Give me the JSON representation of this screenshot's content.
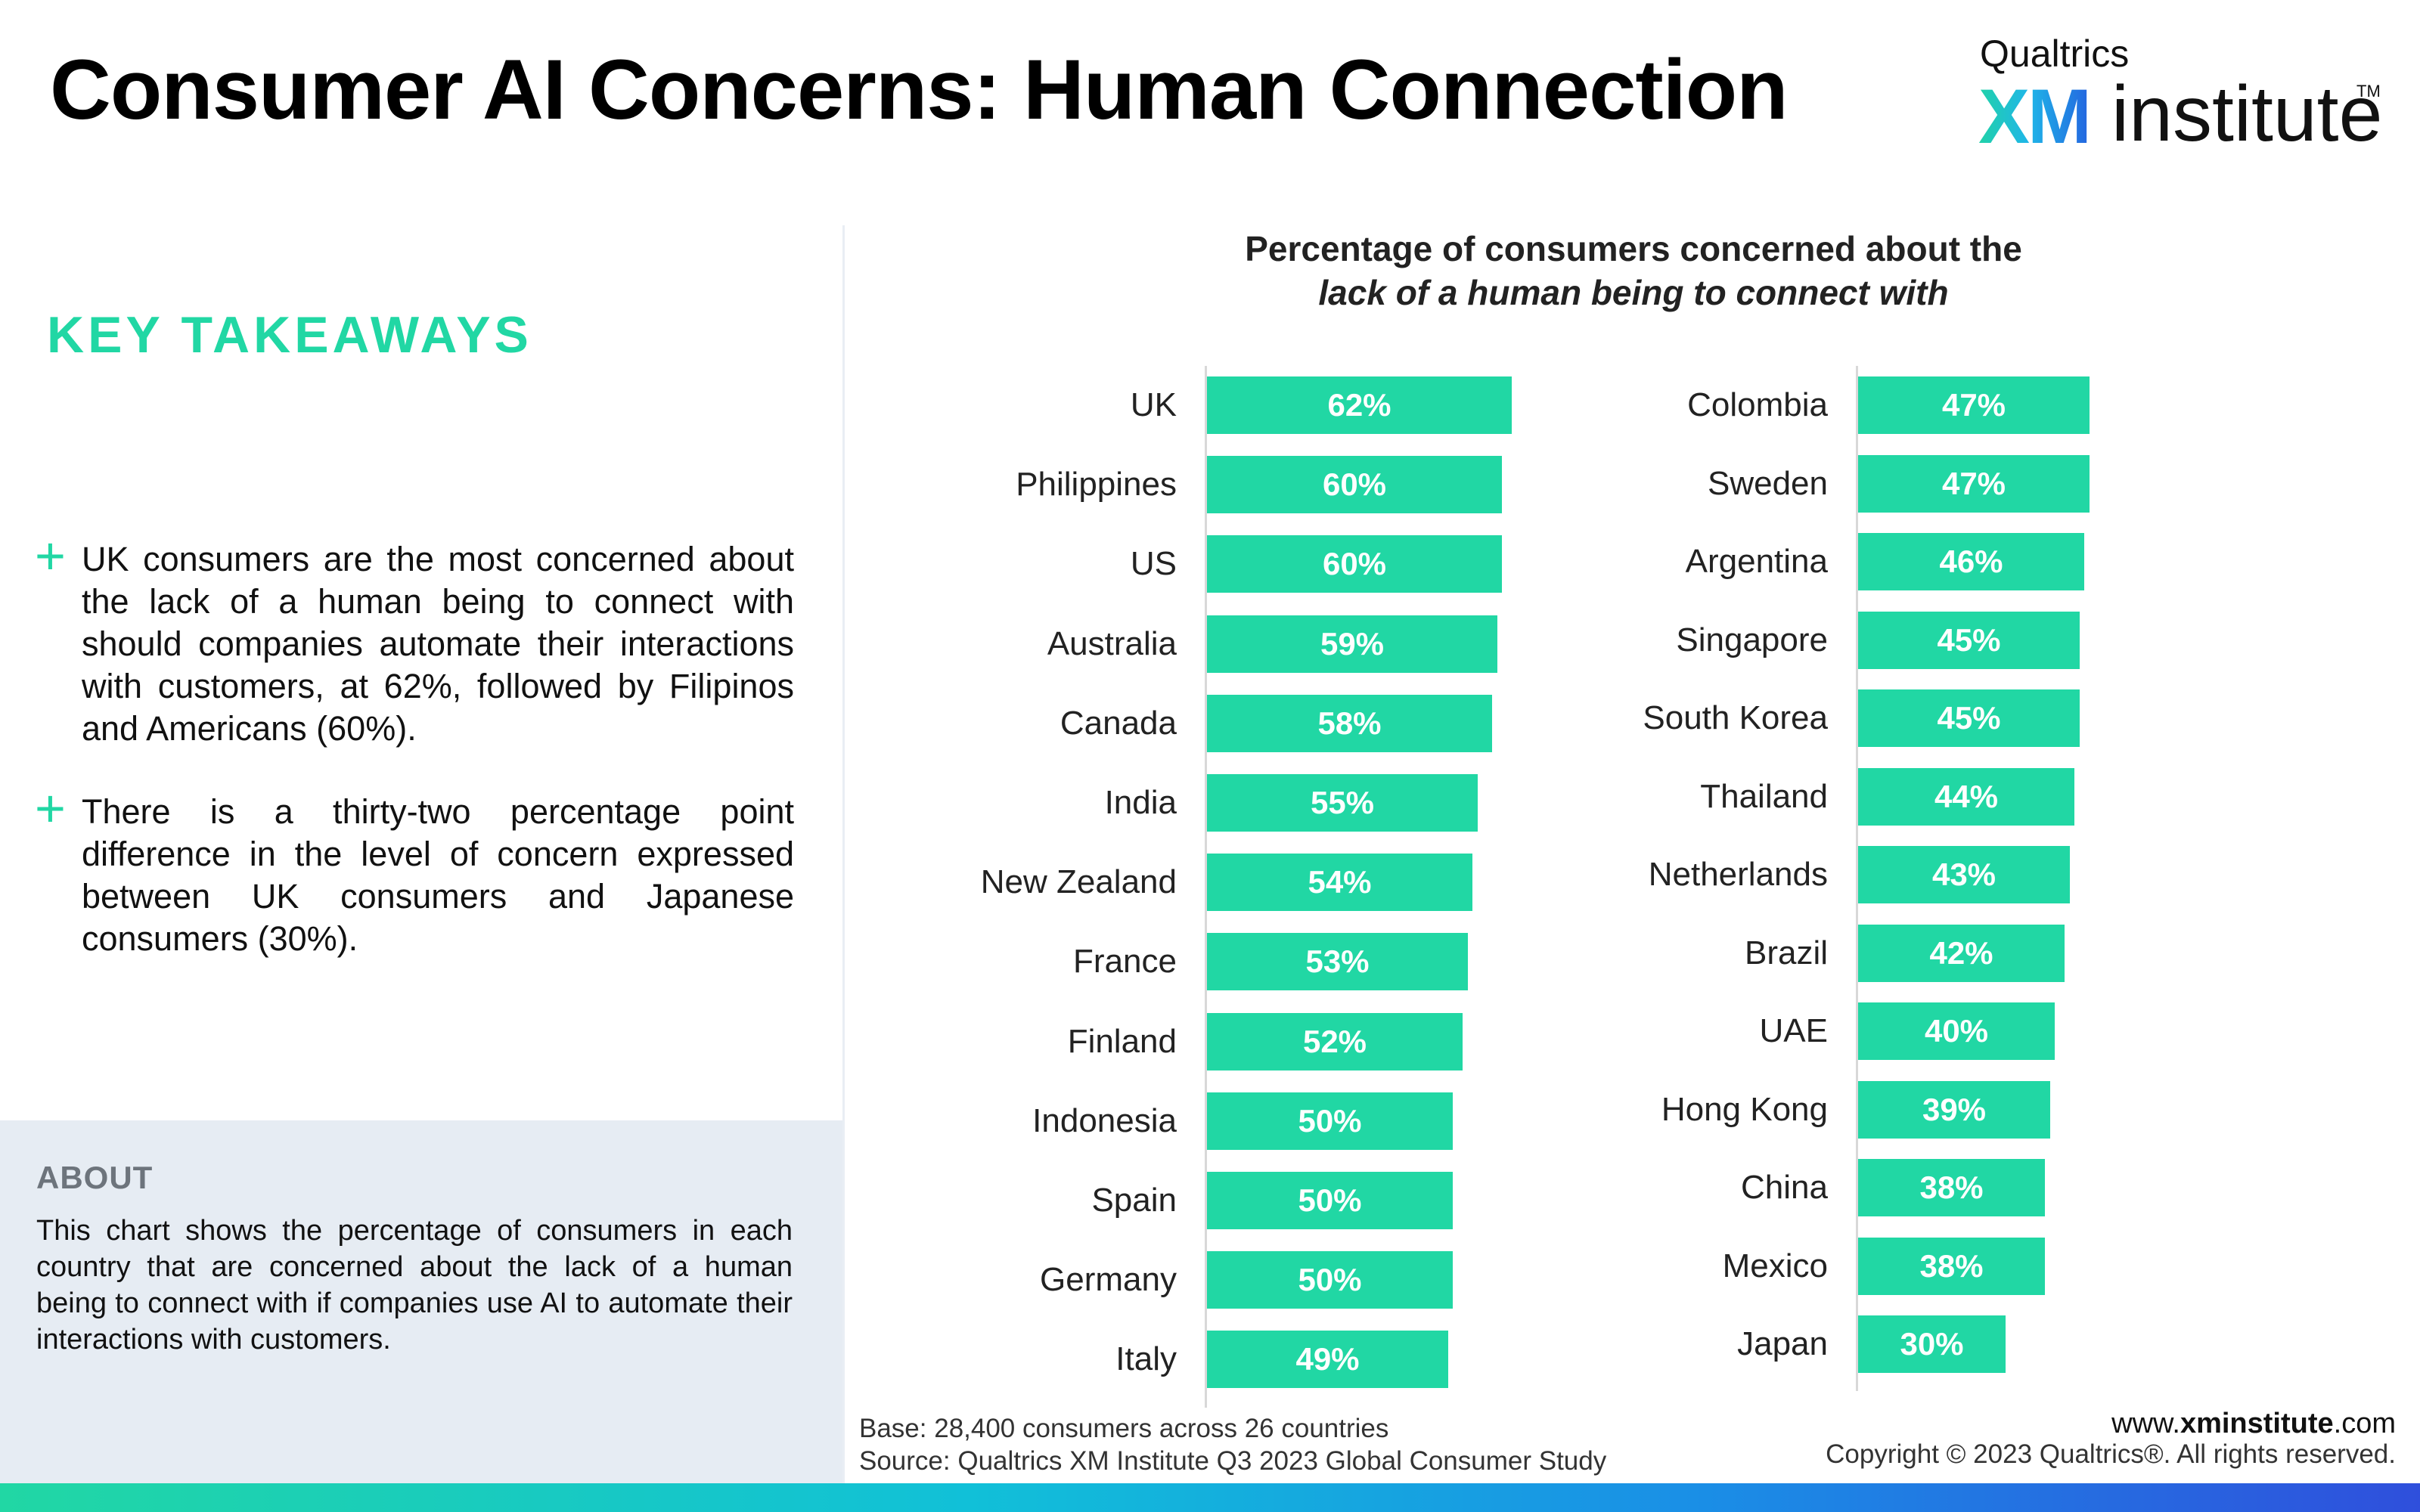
{
  "header": {
    "title": "Consumer AI Concerns: Human Connection",
    "logo": {
      "brand": "Qualtrics",
      "xm": "XM",
      "institute": "institute",
      "tm": "TM"
    }
  },
  "takeaways": {
    "heading": "KEY TAKEAWAYS",
    "items": [
      "UK consumers are the most concerned about the lack of a human being to connect with should companies automate their interactions with customers, at 62%, followed by Filipinos and Americans (60%).",
      "There is a thirty-two percentage point difference in the level of concern expressed between UK consumers and Japanese consumers (30%)."
    ]
  },
  "about": {
    "heading": "ABOUT",
    "text": "This chart shows the percentage of consumers in each country that are concerned about the lack of a human being to connect with if companies use AI to automate their interactions with customers."
  },
  "chart_data": {
    "type": "bar",
    "orientation": "horizontal",
    "title": "Percentage of consumers concerned about the",
    "subtitle": "lack of a human being to connect with",
    "unit": "%",
    "color": "#21d7a4",
    "columns": [
      {
        "categories": [
          "UK",
          "Philippines",
          "US",
          "Australia",
          "Canada",
          "India",
          "New Zealand",
          "France",
          "Finland",
          "Indonesia",
          "Spain",
          "Germany",
          "Italy"
        ],
        "values": [
          62,
          60,
          60,
          59,
          58,
          55,
          54,
          53,
          52,
          50,
          50,
          50,
          49
        ]
      },
      {
        "categories": [
          "Colombia",
          "Sweden",
          "Argentina",
          "Singapore",
          "South Korea",
          "Thailand",
          "Netherlands",
          "Brazil",
          "UAE",
          "Hong Kong",
          "China",
          "Mexico",
          "Japan"
        ],
        "values": [
          47,
          47,
          46,
          45,
          45,
          44,
          43,
          42,
          40,
          39,
          38,
          38,
          30
        ]
      }
    ]
  },
  "footer": {
    "base": "Base: 28,400 consumers across 26 countries",
    "source": "Source: Qualtrics XM Institute Q3 2023 Global Consumer Study",
    "site_prefix": "www.",
    "site_bold": "xminstitute",
    "site_suffix": ".com",
    "copyright": "Copyright © 2023 Qualtrics®. All rights reserved."
  }
}
